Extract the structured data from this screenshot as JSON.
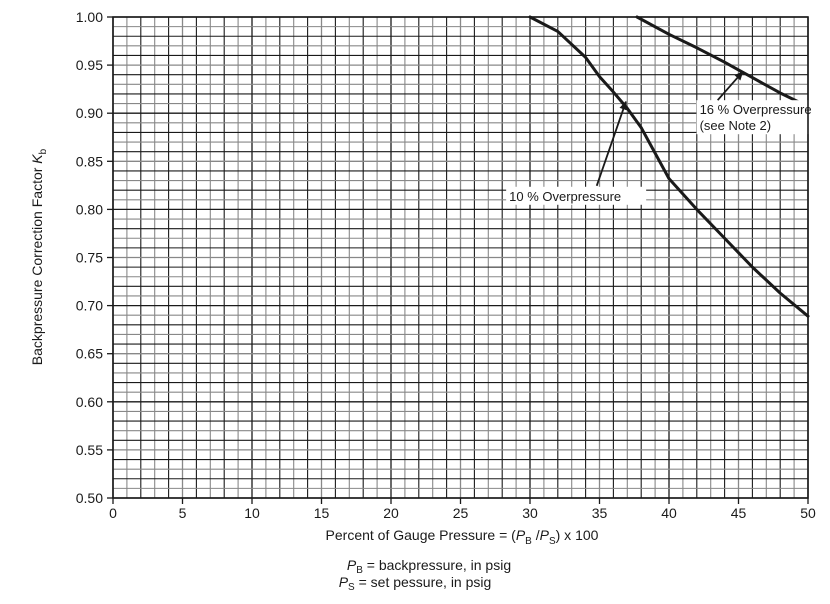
{
  "chart_data": {
    "type": "line",
    "title": "",
    "xlabel": "Percent of Gauge Pressure = (P_B / P_S) x 100",
    "ylabel": "Backpressure Correction Factor K_b",
    "xlim": [
      0,
      50
    ],
    "ylim": [
      0.5,
      1.0
    ],
    "grid": true,
    "x_ticks": [
      0,
      5,
      10,
      15,
      20,
      25,
      30,
      35,
      40,
      45,
      50
    ],
    "x_tick_labels": [
      "0",
      "5",
      "10",
      "15",
      "20",
      "25",
      "30",
      "35",
      "40",
      "45",
      "50"
    ],
    "y_ticks": [
      0.5,
      0.55,
      0.6,
      0.65,
      0.7,
      0.75,
      0.8,
      0.85,
      0.9,
      0.95,
      1.0
    ],
    "y_tick_labels": [
      "0.50",
      "0.55",
      "0.60",
      "0.65",
      "0.70",
      "0.75",
      "0.80",
      "0.85",
      "0.90",
      "0.95",
      "1.00"
    ],
    "series": [
      {
        "name": "10 % Overpressure",
        "x": [
          30,
          32,
          34,
          35,
          36,
          37,
          38,
          40,
          42,
          44,
          45,
          46,
          48,
          50
        ],
        "y": [
          1.0,
          0.985,
          0.958,
          0.938,
          0.922,
          0.905,
          0.885,
          0.832,
          0.8,
          0.77,
          0.755,
          0.74,
          0.713,
          0.689
        ]
      },
      {
        "name": "16 % Overpressure (see Note 2)",
        "x": [
          37.7,
          40,
          42,
          44,
          45,
          46,
          48,
          50
        ],
        "y": [
          1.0,
          0.982,
          0.968,
          0.953,
          0.945,
          0.937,
          0.921,
          0.907
        ]
      }
    ],
    "annotations": [
      {
        "text": "10 % Overpressure",
        "label_x": 28.5,
        "label_y": 0.81,
        "arrow_to_x": 36.9,
        "arrow_to_y": 0.912
      },
      {
        "text": "16 % Overpressure",
        "text2": "(see Note 2)",
        "label_x": 42.2,
        "label_y": 0.9,
        "arrow_to_x": 45.3,
        "arrow_to_y": 0.943
      }
    ]
  },
  "labels": {
    "y_axis_main": "Backpressure Correction Factor ",
    "y_axis_symbol": "K",
    "y_axis_sub": "b",
    "x_axis_prefix": "Percent of Gauge Pressure = (",
    "x_axis_pb": "P",
    "x_axis_pb_sub": "B",
    "x_axis_slash": " /",
    "x_axis_ps": "P",
    "x_axis_ps_sub": "S",
    "x_axis_suffix": ") x 100",
    "note_pb_symbol": "P",
    "note_pb_sub": "B",
    "note_pb_text": " = backpressure, in psig",
    "note_ps_symbol": "P",
    "note_ps_sub": "S",
    "note_ps_text": " = set pessure, in psig"
  },
  "colors": {
    "curve": "#1a1a1a",
    "grid_major": "#1a1a1a",
    "grid_minor": "#888888",
    "background": "#ffffff"
  }
}
